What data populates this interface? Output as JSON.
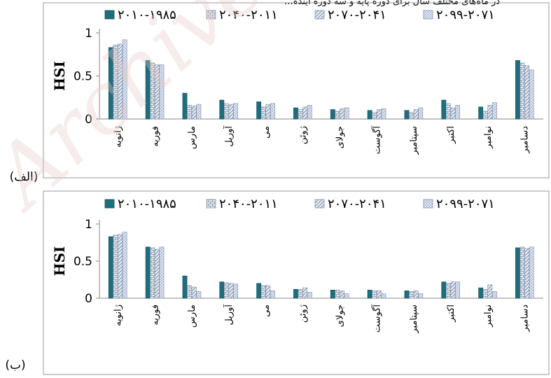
{
  "header_fragment": "…در ماه‌های مختلف سال برای دوره پایه و سه دوره آینده",
  "watermark": "Archive",
  "colors": {
    "series": [
      "#1f6e7e",
      "#dfe4ea",
      "#c7d2e3",
      "#b9c6dd"
    ],
    "series_stroke": [
      "#0e4a56",
      "#8a99ad",
      "#7f90ab",
      "#7d8fae"
    ],
    "axis": "#888888",
    "watermark": "#e7c9c9"
  },
  "chart_data": [
    {
      "type": "bar",
      "panel_label": "(الف)",
      "ylabel": "HSI",
      "ylim": [
        0,
        1
      ],
      "yticks": [
        "0",
        "0.5",
        "1"
      ],
      "legend_position": "top",
      "categories": [
        "ژانویه",
        "فوریه",
        "مارس",
        "آوریل",
        "می",
        "ژوئن",
        "جولای",
        "آگوست",
        "سپتامبر",
        "اکتبر",
        "نوامبر",
        "دسامبر"
      ],
      "series": [
        {
          "name": "۲۰۱۰-۱۹۸۵",
          "values": [
            0.83,
            0.68,
            0.3,
            0.22,
            0.2,
            0.13,
            0.11,
            0.1,
            0.1,
            0.22,
            0.14,
            0.68
          ]
        },
        {
          "name": "۲۰۴۰-۲۰۱۱",
          "values": [
            0.86,
            0.65,
            0.16,
            0.18,
            0.14,
            0.11,
            0.09,
            0.08,
            0.08,
            0.18,
            0.09,
            0.65
          ]
        },
        {
          "name": "۲۰۷۰-۲۰۴۱",
          "values": [
            0.87,
            0.63,
            0.15,
            0.17,
            0.17,
            0.14,
            0.12,
            0.11,
            0.11,
            0.13,
            0.16,
            0.62
          ]
        },
        {
          "name": "۲۰۹۹-۲۰۷۱",
          "values": [
            0.92,
            0.63,
            0.17,
            0.18,
            0.18,
            0.16,
            0.13,
            0.12,
            0.13,
            0.16,
            0.19,
            0.57
          ]
        }
      ]
    },
    {
      "type": "bar",
      "panel_label": "(ب)",
      "ylabel": "HSI",
      "ylim": [
        0,
        1
      ],
      "yticks": [
        "0",
        "0.5",
        "1"
      ],
      "legend_position": "top",
      "categories": [
        "ژانویه",
        "فوریه",
        "مارس",
        "آوریل",
        "می",
        "ژوئن",
        "جولای",
        "آگوست",
        "سپتامبر",
        "اکتبر",
        "نوامبر",
        "دسامبر"
      ],
      "series": [
        {
          "name": "۲۰۱۰-۱۹۸۵",
          "values": [
            0.83,
            0.69,
            0.3,
            0.22,
            0.2,
            0.12,
            0.11,
            0.11,
            0.1,
            0.22,
            0.14,
            0.68
          ]
        },
        {
          "name": "۲۰۴۰-۲۰۱۱",
          "values": [
            0.85,
            0.68,
            0.17,
            0.21,
            0.17,
            0.12,
            0.11,
            0.1,
            0.09,
            0.2,
            0.12,
            0.69
          ]
        },
        {
          "name": "۲۰۷۰-۲۰۴۱",
          "values": [
            0.86,
            0.66,
            0.15,
            0.2,
            0.17,
            0.14,
            0.1,
            0.1,
            0.1,
            0.22,
            0.18,
            0.67
          ]
        },
        {
          "name": "۲۰۹۹-۲۰۷۱",
          "values": [
            0.89,
            0.69,
            0.09,
            0.19,
            0.1,
            0.08,
            0.06,
            0.06,
            0.06,
            0.22,
            0.09,
            0.69
          ]
        }
      ]
    }
  ]
}
